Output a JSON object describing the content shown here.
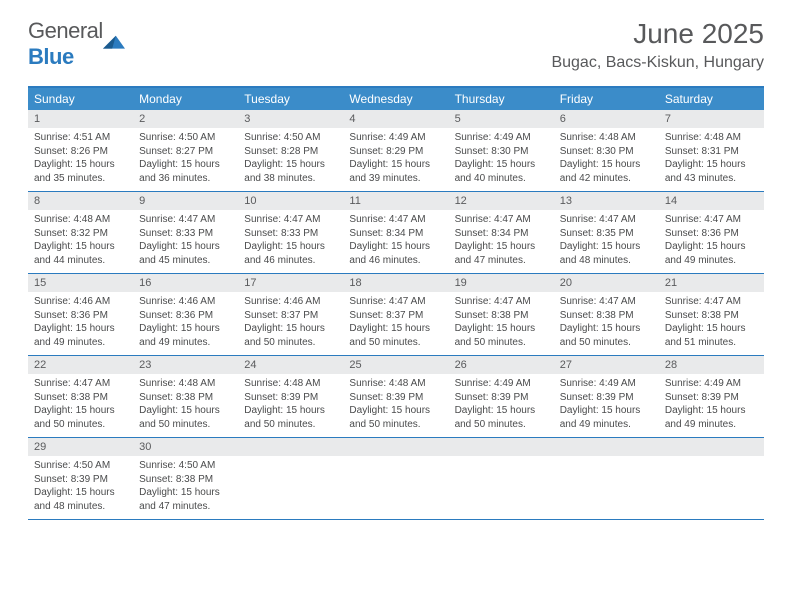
{
  "brand": {
    "text1": "General",
    "text2": "Blue"
  },
  "title": "June 2025",
  "location": "Bugac, Bacs-Kiskun, Hungary",
  "colors": {
    "header_bg": "#3b8cc9",
    "border": "#2b7bbf",
    "daynum_bg": "#e9eaeb",
    "text_muted": "#58595b",
    "body_text": "#4a4b4c"
  },
  "weekdays": [
    "Sunday",
    "Monday",
    "Tuesday",
    "Wednesday",
    "Thursday",
    "Friday",
    "Saturday"
  ],
  "weeks": [
    [
      {
        "n": "1",
        "sr": "4:51 AM",
        "ss": "8:26 PM",
        "dl": "15 hours and 35 minutes."
      },
      {
        "n": "2",
        "sr": "4:50 AM",
        "ss": "8:27 PM",
        "dl": "15 hours and 36 minutes."
      },
      {
        "n": "3",
        "sr": "4:50 AM",
        "ss": "8:28 PM",
        "dl": "15 hours and 38 minutes."
      },
      {
        "n": "4",
        "sr": "4:49 AM",
        "ss": "8:29 PM",
        "dl": "15 hours and 39 minutes."
      },
      {
        "n": "5",
        "sr": "4:49 AM",
        "ss": "8:30 PM",
        "dl": "15 hours and 40 minutes."
      },
      {
        "n": "6",
        "sr": "4:48 AM",
        "ss": "8:30 PM",
        "dl": "15 hours and 42 minutes."
      },
      {
        "n": "7",
        "sr": "4:48 AM",
        "ss": "8:31 PM",
        "dl": "15 hours and 43 minutes."
      }
    ],
    [
      {
        "n": "8",
        "sr": "4:48 AM",
        "ss": "8:32 PM",
        "dl": "15 hours and 44 minutes."
      },
      {
        "n": "9",
        "sr": "4:47 AM",
        "ss": "8:33 PM",
        "dl": "15 hours and 45 minutes."
      },
      {
        "n": "10",
        "sr": "4:47 AM",
        "ss": "8:33 PM",
        "dl": "15 hours and 46 minutes."
      },
      {
        "n": "11",
        "sr": "4:47 AM",
        "ss": "8:34 PM",
        "dl": "15 hours and 46 minutes."
      },
      {
        "n": "12",
        "sr": "4:47 AM",
        "ss": "8:34 PM",
        "dl": "15 hours and 47 minutes."
      },
      {
        "n": "13",
        "sr": "4:47 AM",
        "ss": "8:35 PM",
        "dl": "15 hours and 48 minutes."
      },
      {
        "n": "14",
        "sr": "4:47 AM",
        "ss": "8:36 PM",
        "dl": "15 hours and 49 minutes."
      }
    ],
    [
      {
        "n": "15",
        "sr": "4:46 AM",
        "ss": "8:36 PM",
        "dl": "15 hours and 49 minutes."
      },
      {
        "n": "16",
        "sr": "4:46 AM",
        "ss": "8:36 PM",
        "dl": "15 hours and 49 minutes."
      },
      {
        "n": "17",
        "sr": "4:46 AM",
        "ss": "8:37 PM",
        "dl": "15 hours and 50 minutes."
      },
      {
        "n": "18",
        "sr": "4:47 AM",
        "ss": "8:37 PM",
        "dl": "15 hours and 50 minutes."
      },
      {
        "n": "19",
        "sr": "4:47 AM",
        "ss": "8:38 PM",
        "dl": "15 hours and 50 minutes."
      },
      {
        "n": "20",
        "sr": "4:47 AM",
        "ss": "8:38 PM",
        "dl": "15 hours and 50 minutes."
      },
      {
        "n": "21",
        "sr": "4:47 AM",
        "ss": "8:38 PM",
        "dl": "15 hours and 51 minutes."
      }
    ],
    [
      {
        "n": "22",
        "sr": "4:47 AM",
        "ss": "8:38 PM",
        "dl": "15 hours and 50 minutes."
      },
      {
        "n": "23",
        "sr": "4:48 AM",
        "ss": "8:38 PM",
        "dl": "15 hours and 50 minutes."
      },
      {
        "n": "24",
        "sr": "4:48 AM",
        "ss": "8:39 PM",
        "dl": "15 hours and 50 minutes."
      },
      {
        "n": "25",
        "sr": "4:48 AM",
        "ss": "8:39 PM",
        "dl": "15 hours and 50 minutes."
      },
      {
        "n": "26",
        "sr": "4:49 AM",
        "ss": "8:39 PM",
        "dl": "15 hours and 50 minutes."
      },
      {
        "n": "27",
        "sr": "4:49 AM",
        "ss": "8:39 PM",
        "dl": "15 hours and 49 minutes."
      },
      {
        "n": "28",
        "sr": "4:49 AM",
        "ss": "8:39 PM",
        "dl": "15 hours and 49 minutes."
      }
    ],
    [
      {
        "n": "29",
        "sr": "4:50 AM",
        "ss": "8:39 PM",
        "dl": "15 hours and 48 minutes."
      },
      {
        "n": "30",
        "sr": "4:50 AM",
        "ss": "8:38 PM",
        "dl": "15 hours and 47 minutes."
      },
      null,
      null,
      null,
      null,
      null
    ]
  ],
  "labels": {
    "sunrise": "Sunrise:",
    "sunset": "Sunset:",
    "daylight": "Daylight:"
  }
}
